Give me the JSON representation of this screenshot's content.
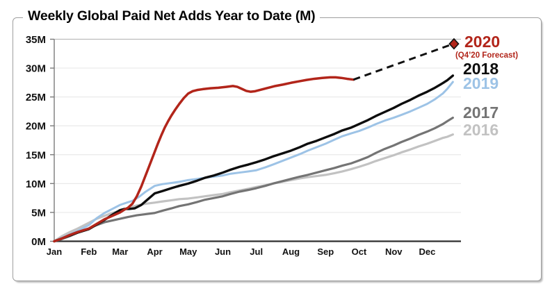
{
  "chart_data": {
    "type": "line",
    "title": "Weekly Global Paid Net Adds Year to Date (M)",
    "y_axis": {
      "ticks": [
        0,
        5,
        10,
        15,
        20,
        25,
        30,
        35
      ],
      "tick_labels": [
        "0M",
        "5M",
        "10M",
        "15M",
        "20M",
        "25M",
        "30M",
        "35M"
      ],
      "lim": [
        0,
        35
      ],
      "unit": "millions of paid net adds"
    },
    "x_axis": {
      "tick_labels": [
        "Jan",
        "Feb",
        "Mar",
        "Apr",
        "May",
        "Jun",
        "Jul",
        "Aug",
        "Sep",
        "Oct",
        "Nov",
        "Dec"
      ],
      "month_start_days": [
        0,
        31,
        59,
        90,
        120,
        151,
        181,
        212,
        243,
        273,
        304,
        334
      ],
      "unit": "day of year",
      "lim_days": [
        0,
        365
      ]
    },
    "grid": "horizontal-on",
    "legend_position": "right",
    "colors": {
      "y2020": "#B2251A",
      "y2018": "#0D0D0D",
      "y2019": "#9DC3E6",
      "y2017": "#747474",
      "y2016": "#C2C2C2",
      "forecast_line": "#111111",
      "gridline": "#E9E9E9",
      "gridline_top": "#BCBCBC",
      "axis": "#2F2F2F"
    },
    "series": [
      {
        "name": "2016",
        "color": "#C2C2C2",
        "width": 3.2,
        "style": "solid",
        "points": [
          [
            0,
            0
          ],
          [
            7,
            0.9
          ],
          [
            14,
            1.6
          ],
          [
            21,
            2.2
          ],
          [
            31,
            3.2
          ],
          [
            38,
            3.9
          ],
          [
            45,
            4.4
          ],
          [
            52,
            4.9
          ],
          [
            59,
            5.3
          ],
          [
            66,
            5.8
          ],
          [
            74,
            6.2
          ],
          [
            82,
            6.5
          ],
          [
            90,
            6.7
          ],
          [
            97,
            6.9
          ],
          [
            105,
            7.1
          ],
          [
            112,
            7.3
          ],
          [
            120,
            7.4
          ],
          [
            128,
            7.6
          ],
          [
            135,
            7.8
          ],
          [
            143,
            8.0
          ],
          [
            151,
            8.2
          ],
          [
            158,
            8.5
          ],
          [
            166,
            8.8
          ],
          [
            174,
            9.1
          ],
          [
            181,
            9.4
          ],
          [
            189,
            9.7
          ],
          [
            196,
            10.0
          ],
          [
            204,
            10.3
          ],
          [
            212,
            10.6
          ],
          [
            220,
            10.9
          ],
          [
            227,
            11.1
          ],
          [
            235,
            11.3
          ],
          [
            243,
            11.5
          ],
          [
            251,
            11.8
          ],
          [
            258,
            12.1
          ],
          [
            266,
            12.5
          ],
          [
            273,
            12.9
          ],
          [
            281,
            13.4
          ],
          [
            288,
            13.9
          ],
          [
            296,
            14.4
          ],
          [
            304,
            14.9
          ],
          [
            311,
            15.4
          ],
          [
            319,
            15.9
          ],
          [
            326,
            16.4
          ],
          [
            334,
            16.9
          ],
          [
            341,
            17.4
          ],
          [
            348,
            17.9
          ],
          [
            352,
            18.1
          ],
          [
            357,
            18.5
          ]
        ]
      },
      {
        "name": "2017",
        "color": "#747474",
        "width": 3.2,
        "style": "solid",
        "points": [
          [
            0,
            0
          ],
          [
            7,
            0.4
          ],
          [
            14,
            0.9
          ],
          [
            21,
            1.5
          ],
          [
            31,
            2.2
          ],
          [
            38,
            2.8
          ],
          [
            45,
            3.3
          ],
          [
            52,
            3.6
          ],
          [
            59,
            3.9
          ],
          [
            66,
            4.2
          ],
          [
            74,
            4.5
          ],
          [
            82,
            4.7
          ],
          [
            90,
            4.9
          ],
          [
            97,
            5.3
          ],
          [
            105,
            5.7
          ],
          [
            112,
            6.1
          ],
          [
            120,
            6.4
          ],
          [
            128,
            6.8
          ],
          [
            135,
            7.2
          ],
          [
            143,
            7.5
          ],
          [
            151,
            7.8
          ],
          [
            158,
            8.2
          ],
          [
            166,
            8.6
          ],
          [
            174,
            8.9
          ],
          [
            181,
            9.2
          ],
          [
            189,
            9.6
          ],
          [
            196,
            10.0
          ],
          [
            204,
            10.4
          ],
          [
            212,
            10.8
          ],
          [
            220,
            11.2
          ],
          [
            227,
            11.5
          ],
          [
            235,
            11.9
          ],
          [
            243,
            12.3
          ],
          [
            251,
            12.7
          ],
          [
            258,
            13.1
          ],
          [
            266,
            13.5
          ],
          [
            273,
            14.0
          ],
          [
            281,
            14.6
          ],
          [
            288,
            15.3
          ],
          [
            296,
            16.0
          ],
          [
            304,
            16.6
          ],
          [
            311,
            17.2
          ],
          [
            319,
            17.8
          ],
          [
            326,
            18.4
          ],
          [
            334,
            19.0
          ],
          [
            341,
            19.6
          ],
          [
            348,
            20.3
          ],
          [
            352,
            20.8
          ],
          [
            357,
            21.4
          ]
        ]
      },
      {
        "name": "2019",
        "color": "#9DC3E6",
        "width": 3.0,
        "style": "solid",
        "points": [
          [
            0,
            0
          ],
          [
            7,
            0.6
          ],
          [
            14,
            1.2
          ],
          [
            21,
            1.8
          ],
          [
            31,
            2.8
          ],
          [
            38,
            4.0
          ],
          [
            45,
            4.9
          ],
          [
            52,
            5.6
          ],
          [
            59,
            6.3
          ],
          [
            65,
            6.7
          ],
          [
            70,
            7.0
          ],
          [
            76,
            7.7
          ],
          [
            82,
            8.6
          ],
          [
            90,
            9.6
          ],
          [
            97,
            9.9
          ],
          [
            105,
            10.1
          ],
          [
            112,
            10.3
          ],
          [
            120,
            10.6
          ],
          [
            128,
            10.8
          ],
          [
            135,
            11.0
          ],
          [
            143,
            11.2
          ],
          [
            151,
            11.4
          ],
          [
            158,
            11.7
          ],
          [
            166,
            11.9
          ],
          [
            174,
            12.1
          ],
          [
            181,
            12.3
          ],
          [
            189,
            12.8
          ],
          [
            196,
            13.3
          ],
          [
            204,
            13.9
          ],
          [
            212,
            14.5
          ],
          [
            220,
            15.1
          ],
          [
            227,
            15.7
          ],
          [
            235,
            16.3
          ],
          [
            243,
            16.9
          ],
          [
            251,
            17.6
          ],
          [
            258,
            18.2
          ],
          [
            266,
            18.7
          ],
          [
            273,
            19.1
          ],
          [
            281,
            19.7
          ],
          [
            288,
            20.3
          ],
          [
            296,
            20.9
          ],
          [
            304,
            21.4
          ],
          [
            311,
            21.9
          ],
          [
            319,
            22.5
          ],
          [
            326,
            23.1
          ],
          [
            334,
            23.8
          ],
          [
            341,
            24.6
          ],
          [
            348,
            25.6
          ],
          [
            352,
            26.4
          ],
          [
            357,
            27.6
          ]
        ]
      },
      {
        "name": "2018",
        "color": "#0D0D0D",
        "width": 3.4,
        "style": "solid",
        "points": [
          [
            0,
            0
          ],
          [
            7,
            0.5
          ],
          [
            14,
            1.0
          ],
          [
            21,
            1.5
          ],
          [
            31,
            2.1
          ],
          [
            38,
            2.9
          ],
          [
            45,
            3.7
          ],
          [
            52,
            4.6
          ],
          [
            59,
            5.4
          ],
          [
            63,
            5.6
          ],
          [
            67,
            5.6
          ],
          [
            72,
            5.7
          ],
          [
            78,
            6.3
          ],
          [
            84,
            7.3
          ],
          [
            90,
            8.3
          ],
          [
            97,
            8.7
          ],
          [
            105,
            9.2
          ],
          [
            112,
            9.6
          ],
          [
            120,
            10.0
          ],
          [
            128,
            10.5
          ],
          [
            135,
            11.0
          ],
          [
            143,
            11.4
          ],
          [
            151,
            11.9
          ],
          [
            158,
            12.4
          ],
          [
            166,
            12.9
          ],
          [
            174,
            13.3
          ],
          [
            181,
            13.7
          ],
          [
            189,
            14.2
          ],
          [
            196,
            14.7
          ],
          [
            204,
            15.2
          ],
          [
            212,
            15.7
          ],
          [
            220,
            16.3
          ],
          [
            227,
            16.9
          ],
          [
            235,
            17.4
          ],
          [
            243,
            18.0
          ],
          [
            251,
            18.6
          ],
          [
            258,
            19.2
          ],
          [
            266,
            19.7
          ],
          [
            273,
            20.3
          ],
          [
            281,
            21.0
          ],
          [
            288,
            21.7
          ],
          [
            296,
            22.4
          ],
          [
            304,
            23.1
          ],
          [
            311,
            23.8
          ],
          [
            319,
            24.5
          ],
          [
            326,
            25.2
          ],
          [
            334,
            25.9
          ],
          [
            341,
            26.6
          ],
          [
            348,
            27.4
          ],
          [
            352,
            27.9
          ],
          [
            357,
            28.7
          ]
        ]
      },
      {
        "name": "2020",
        "color": "#B2251A",
        "width": 3.5,
        "style": "solid",
        "points": [
          [
            0,
            0
          ],
          [
            7,
            0.5
          ],
          [
            14,
            1.1
          ],
          [
            21,
            1.6
          ],
          [
            26,
            1.9
          ],
          [
            31,
            2.2
          ],
          [
            38,
            3.0
          ],
          [
            45,
            3.8
          ],
          [
            52,
            4.4
          ],
          [
            59,
            5.0
          ],
          [
            63,
            5.5
          ],
          [
            66,
            5.8
          ],
          [
            70,
            6.5
          ],
          [
            74,
            7.8
          ],
          [
            78,
            9.5
          ],
          [
            81,
            11.0
          ],
          [
            84,
            12.5
          ],
          [
            87,
            14.0
          ],
          [
            90,
            15.5
          ],
          [
            93,
            17.0
          ],
          [
            96,
            18.4
          ],
          [
            99,
            19.7
          ],
          [
            102,
            20.8
          ],
          [
            105,
            21.8
          ],
          [
            108,
            22.7
          ],
          [
            112,
            23.8
          ],
          [
            116,
            24.8
          ],
          [
            120,
            25.6
          ],
          [
            124,
            26.0
          ],
          [
            128,
            26.2
          ],
          [
            133,
            26.35
          ],
          [
            140,
            26.5
          ],
          [
            147,
            26.6
          ],
          [
            154,
            26.75
          ],
          [
            160,
            26.9
          ],
          [
            164,
            26.75
          ],
          [
            168,
            26.4
          ],
          [
            172,
            26.05
          ],
          [
            176,
            25.9
          ],
          [
            180,
            26.0
          ],
          [
            186,
            26.3
          ],
          [
            192,
            26.6
          ],
          [
            198,
            26.9
          ],
          [
            205,
            27.15
          ],
          [
            212,
            27.45
          ],
          [
            219,
            27.7
          ],
          [
            226,
            27.95
          ],
          [
            233,
            28.15
          ],
          [
            240,
            28.3
          ],
          [
            247,
            28.4
          ],
          [
            252,
            28.4
          ],
          [
            257,
            28.3
          ],
          [
            262,
            28.15
          ],
          [
            268,
            28.0
          ]
        ]
      }
    ],
    "forecast": {
      "for_series": "2020",
      "note": "(Q4’20 Forecast)",
      "line_style": "dashed",
      "points": [
        [
          268,
          28.0
        ],
        [
          356,
          34.1
        ]
      ],
      "marker": {
        "shape": "diamond",
        "day": 358,
        "value": 34.2,
        "fill": "#B2251A",
        "stroke": "#111111"
      },
      "forecast_full_year_value_M": 34
    },
    "legend_labels": {
      "y2020": "2020",
      "forecast_note": "(Q4’20 Forecast)",
      "y2018": "2018",
      "y2019": "2019",
      "y2017": "2017",
      "y2016": "2016"
    }
  }
}
